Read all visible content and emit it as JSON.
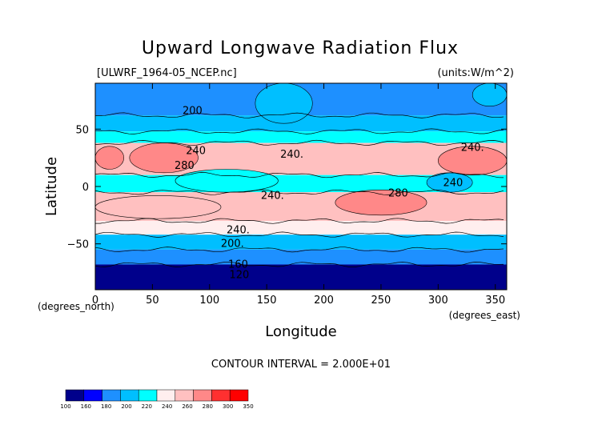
{
  "chart_data": {
    "type": "heatmap",
    "title": "Upward Longwave Radiation Flux",
    "file_label": "[ULWRF_1964-05_NCEP.nc]",
    "units_label": "(units:W/m^2)",
    "xlabel": "Longitude",
    "ylabel": "Latitude",
    "x_unit_label": "(degrees_east)",
    "y_unit_label": "(degrees_north)",
    "xlim": [
      0,
      360
    ],
    "ylim": [
      -90,
      90
    ],
    "x_ticks": [
      0,
      50,
      100,
      150,
      200,
      250,
      300,
      350
    ],
    "y_ticks": [
      -50,
      0,
      50
    ],
    "contour_interval_text": "CONTOUR INTERVAL = 2.000E+01",
    "contour_labels": [
      {
        "text": "200",
        "lon": 85,
        "lat": 66
      },
      {
        "text": "240",
        "lon": 88,
        "lat": 31
      },
      {
        "text": "280",
        "lon": 78,
        "lat": 18
      },
      {
        "text": "240.",
        "lon": 172,
        "lat": 28
      },
      {
        "text": "240.",
        "lon": 155,
        "lat": -8
      },
      {
        "text": "280",
        "lon": 265,
        "lat": -6
      },
      {
        "text": "240",
        "lon": 313,
        "lat": 3
      },
      {
        "text": "240.",
        "lon": 330,
        "lat": 34
      },
      {
        "text": "240.",
        "lon": 125,
        "lat": -38
      },
      {
        "text": "200.",
        "lon": 120,
        "lat": -50
      },
      {
        "text": "160",
        "lon": 125,
        "lat": -68
      },
      {
        "text": "120",
        "lon": 126,
        "lat": -77
      }
    ],
    "colorbar": {
      "labels": [
        "100",
        "160",
        "180",
        "200",
        "220",
        "240",
        "260",
        "280",
        "300",
        "350"
      ],
      "colors": [
        "#00008b",
        "#0000ff",
        "#1e90ff",
        "#00bfff",
        "#00ffff",
        "#ffeeee",
        "#ffc0c0",
        "#ff8888",
        "#ff3030",
        "#ff0000"
      ]
    },
    "zonal_bands": [
      {
        "lat_max": 90,
        "lat_min": 62,
        "value": 190
      },
      {
        "lat_max": 62,
        "lat_min": 48,
        "value": 215
      },
      {
        "lat_max": 48,
        "lat_min": 38,
        "value": 235
      },
      {
        "lat_max": 38,
        "lat_min": 10,
        "value": 262
      },
      {
        "lat_max": 10,
        "lat_min": -5,
        "value": 232
      },
      {
        "lat_max": -5,
        "lat_min": -30,
        "value": 268
      },
      {
        "lat_max": -30,
        "lat_min": -42,
        "value": 242
      },
      {
        "lat_max": -42,
        "lat_min": -55,
        "value": 215
      },
      {
        "lat_max": -55,
        "lat_min": -68,
        "value": 195
      },
      {
        "lat_max": -68,
        "lat_min": -90,
        "value": 150
      }
    ],
    "regional_features": [
      {
        "lon": [
          30,
          90
        ],
        "lat": [
          12,
          38
        ],
        "value": 290
      },
      {
        "lon": [
          300,
          360
        ],
        "lat": [
          10,
          35
        ],
        "value": 285
      },
      {
        "lon": [
          0,
          25
        ],
        "lat": [
          15,
          35
        ],
        "value": 280
      },
      {
        "lon": [
          210,
          290
        ],
        "lat": [
          -25,
          -3
        ],
        "value": 285
      },
      {
        "lon": [
          0,
          110
        ],
        "lat": [
          -28,
          -8
        ],
        "value": 262
      },
      {
        "lon": [
          70,
          160
        ],
        "lat": [
          -5,
          15
        ],
        "value": 220
      },
      {
        "lon": [
          290,
          330
        ],
        "lat": [
          -5,
          12
        ],
        "value": 215
      },
      {
        "lon": [
          140,
          190
        ],
        "lat": [
          55,
          90
        ],
        "value": 215
      },
      {
        "lon": [
          330,
          360
        ],
        "lat": [
          70,
          90
        ],
        "value": 200
      }
    ]
  }
}
